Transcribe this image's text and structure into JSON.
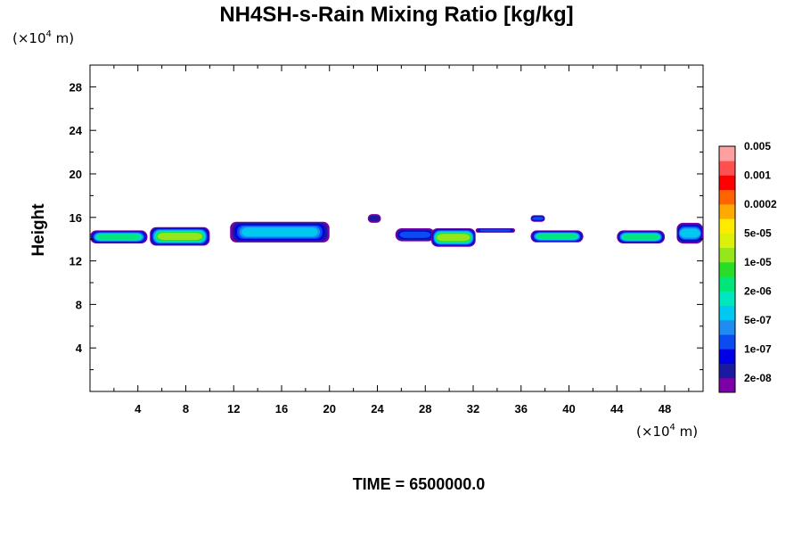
{
  "chart_data": {
    "type": "heatmap",
    "title": "NH4SH-s-Rain Mixing Ratio [kg/kg]",
    "ylabel": "Height",
    "xlabel": "",
    "x_unit": {
      "prefix": "(×10",
      "exp": "4",
      "suffix": " m)"
    },
    "y_unit": {
      "prefix": "(×10",
      "exp": "4",
      "suffix": " m)"
    },
    "xlim": [
      0,
      51.2
    ],
    "ylim": [
      0,
      30
    ],
    "x_ticks": [
      "4",
      "8",
      "12",
      "16",
      "20",
      "24",
      "28",
      "32",
      "36",
      "40",
      "44",
      "48"
    ],
    "x_tick_values": [
      4,
      8,
      12,
      16,
      20,
      24,
      28,
      32,
      36,
      40,
      44,
      48
    ],
    "y_ticks": [
      "4",
      "8",
      "12",
      "16",
      "20",
      "24",
      "28"
    ],
    "y_tick_values": [
      4,
      8,
      12,
      16,
      20,
      24,
      28
    ],
    "colorbar": {
      "colors": [
        "#7b00a8",
        "#1a1aa0",
        "#0000e6",
        "#0a4cf0",
        "#1e8cf0",
        "#00c8f0",
        "#00e6be",
        "#00e678",
        "#28dc28",
        "#96e61e",
        "#dcf00a",
        "#ffeb00",
        "#ffaa00",
        "#ff6400",
        "#ff0000",
        "#ff5050",
        "#ffa0a0"
      ],
      "labels": [
        "2e-08",
        "1e-07",
        "5e-07",
        "2e-06",
        "1e-05",
        "5e-05",
        "0.0002",
        "0.001",
        "0.005"
      ]
    },
    "cloud_regions": [
      {
        "x0": 0,
        "x1": 4.8,
        "y0": 13.6,
        "y1": 14.8,
        "peak": "2e-06"
      },
      {
        "x0": 5.0,
        "x1": 10.0,
        "y0": 13.4,
        "y1": 15.1,
        "peak": "1e-05"
      },
      {
        "x0": 11.7,
        "x1": 20.0,
        "y0": 13.7,
        "y1": 15.6,
        "peak": "5e-07"
      },
      {
        "x0": 23.2,
        "x1": 24.3,
        "y0": 15.5,
        "y1": 16.3,
        "peak": "2e-08"
      },
      {
        "x0": 25.5,
        "x1": 28.8,
        "y0": 13.8,
        "y1": 15.0,
        "peak": "1e-07"
      },
      {
        "x0": 28.5,
        "x1": 32.2,
        "y0": 13.3,
        "y1": 15.0,
        "peak": "1e-05"
      },
      {
        "x0": 32.2,
        "x1": 35.5,
        "y0": 14.6,
        "y1": 15.0,
        "peak": "1e-07"
      },
      {
        "x0": 36.8,
        "x1": 38.0,
        "y0": 15.6,
        "y1": 16.2,
        "peak": "1e-07"
      },
      {
        "x0": 36.8,
        "x1": 41.2,
        "y0": 13.7,
        "y1": 14.8,
        "peak": "2e-06"
      },
      {
        "x0": 44.0,
        "x1": 48.0,
        "y0": 13.6,
        "y1": 14.8,
        "peak": "2e-06"
      },
      {
        "x0": 49.0,
        "x1": 51.2,
        "y0": 13.6,
        "y1": 15.5,
        "peak": "5e-07"
      }
    ]
  },
  "footer": {
    "time_label": "TIME = 6500000.0"
  }
}
